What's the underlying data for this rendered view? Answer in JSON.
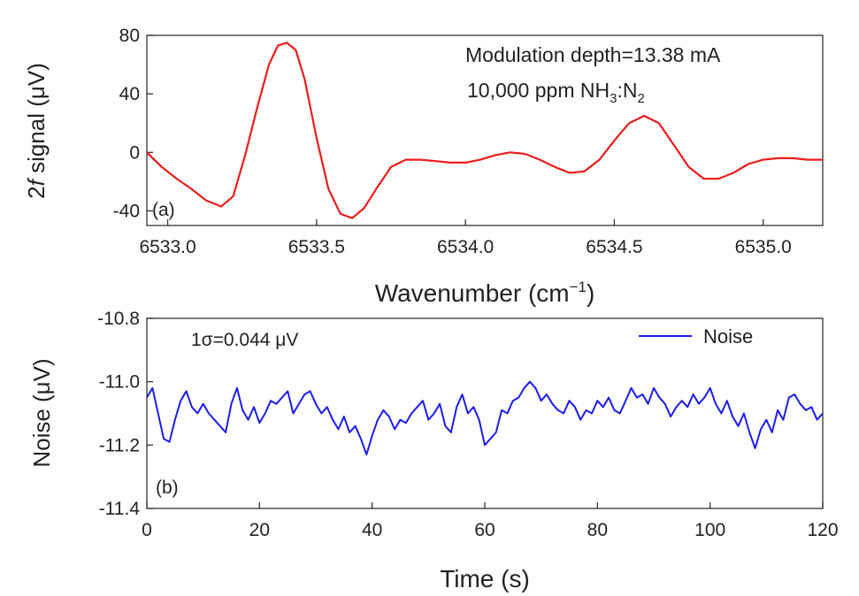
{
  "chart_data": [
    {
      "panel": "a",
      "type": "line",
      "panel_label": "(a)",
      "xlabel": "Wavenumber (cm",
      "xlabel_sup": "−1",
      "xlabel_close": ")",
      "ylabel_prefix": "2",
      "ylabel_italic": "f",
      "ylabel_rest": " signal (μV)",
      "xlim": [
        6532.93,
        6535.2
      ],
      "ylim": [
        -50,
        80
      ],
      "xticks": [
        6533.0,
        6533.5,
        6534.0,
        6534.5,
        6535.0
      ],
      "xtick_labels": [
        "6533.0",
        "6533.5",
        "6534.0",
        "6534.5",
        "6535.0"
      ],
      "yticks": [
        -40,
        0,
        40,
        80
      ],
      "ytick_labels": [
        "-40",
        "0",
        "40",
        "80"
      ],
      "annotations": {
        "line1": "Modulation depth=13.38 mA",
        "line2_a": "10,000 ppm NH",
        "line2_sub1": "3",
        "line2_b": ":N",
        "line2_sub2": "2"
      },
      "series": [
        {
          "name": "2f signal",
          "color": "#ee1c1c",
          "x": [
            6532.93,
            6532.98,
            6533.03,
            6533.08,
            6533.13,
            6533.18,
            6533.22,
            6533.26,
            6533.3,
            6533.34,
            6533.37,
            6533.4,
            6533.43,
            6533.46,
            6533.5,
            6533.54,
            6533.58,
            6533.62,
            6533.66,
            6533.7,
            6533.75,
            6533.8,
            6533.85,
            6533.9,
            6533.95,
            6534.0,
            6534.05,
            6534.1,
            6534.15,
            6534.2,
            6534.25,
            6534.3,
            6534.35,
            6534.4,
            6534.45,
            6534.5,
            6534.55,
            6534.6,
            6534.65,
            6534.7,
            6534.75,
            6534.8,
            6534.85,
            6534.9,
            6534.95,
            6535.0,
            6535.05,
            6535.1,
            6535.15,
            6535.2
          ],
          "y": [
            0,
            -10,
            -18,
            -25,
            -33,
            -37,
            -30,
            -2,
            30,
            60,
            73,
            75,
            70,
            50,
            10,
            -25,
            -42,
            -45,
            -38,
            -25,
            -10,
            -5,
            -5,
            -6,
            -7,
            -7,
            -5,
            -2,
            0,
            -1,
            -5,
            -10,
            -14,
            -13,
            -5,
            8,
            20,
            25,
            20,
            5,
            -10,
            -18,
            -18,
            -14,
            -8,
            -5,
            -4,
            -4,
            -5,
            -5
          ]
        }
      ]
    },
    {
      "panel": "b",
      "type": "line",
      "panel_label": "(b)",
      "xlabel": "Time (s)",
      "ylabel": "Noise (μV)",
      "xlim": [
        0,
        120
      ],
      "ylim": [
        -11.4,
        -10.8
      ],
      "xticks": [
        0,
        20,
        40,
        60,
        80,
        100,
        120
      ],
      "xtick_labels": [
        "0",
        "20",
        "40",
        "60",
        "80",
        "100",
        "120"
      ],
      "yticks": [
        -11.4,
        -11.2,
        -11.0,
        -10.8
      ],
      "ytick_labels": [
        "-11.4",
        "-11.2",
        "-11.0",
        "-10.8"
      ],
      "annotations": {
        "sigma": "1σ=0.044 μV"
      },
      "legend": {
        "label": "Noise",
        "placement": "top-right"
      },
      "series": [
        {
          "name": "Noise",
          "color": "#1c1cee",
          "x": [
            0,
            1,
            2,
            3,
            4,
            5,
            6,
            7,
            8,
            9,
            10,
            11,
            12,
            13,
            14,
            15,
            16,
            17,
            18,
            19,
            20,
            21,
            22,
            23,
            24,
            25,
            26,
            27,
            28,
            29,
            30,
            31,
            32,
            33,
            34,
            35,
            36,
            37,
            38,
            39,
            40,
            41,
            42,
            43,
            44,
            45,
            46,
            47,
            48,
            49,
            50,
            51,
            52,
            53,
            54,
            55,
            56,
            57,
            58,
            59,
            60,
            61,
            62,
            63,
            64,
            65,
            66,
            67,
            68,
            69,
            70,
            71,
            72,
            73,
            74,
            75,
            76,
            77,
            78,
            79,
            80,
            81,
            82,
            83,
            84,
            85,
            86,
            87,
            88,
            89,
            90,
            91,
            92,
            93,
            94,
            95,
            96,
            97,
            98,
            99,
            100,
            101,
            102,
            103,
            104,
            105,
            106,
            107,
            108,
            109,
            110,
            111,
            112,
            113,
            114,
            115,
            116,
            117,
            118,
            119,
            120
          ],
          "y": [
            -11.05,
            -11.02,
            -11.1,
            -11.18,
            -11.19,
            -11.12,
            -11.06,
            -11.03,
            -11.08,
            -11.1,
            -11.07,
            -11.1,
            -11.12,
            -11.14,
            -11.16,
            -11.07,
            -11.02,
            -11.09,
            -11.12,
            -11.08,
            -11.13,
            -11.1,
            -11.06,
            -11.07,
            -11.05,
            -11.03,
            -11.1,
            -11.07,
            -11.04,
            -11.03,
            -11.07,
            -11.1,
            -11.08,
            -11.12,
            -11.15,
            -11.11,
            -11.16,
            -11.14,
            -11.18,
            -11.23,
            -11.17,
            -11.12,
            -11.09,
            -11.11,
            -11.15,
            -11.12,
            -11.13,
            -11.1,
            -11.08,
            -11.06,
            -11.12,
            -11.1,
            -11.07,
            -11.14,
            -11.16,
            -11.08,
            -11.04,
            -11.1,
            -11.08,
            -11.12,
            -11.2,
            -11.18,
            -11.16,
            -11.09,
            -11.1,
            -11.06,
            -11.05,
            -11.02,
            -11.0,
            -11.02,
            -11.06,
            -11.04,
            -11.07,
            -11.09,
            -11.1,
            -11.06,
            -11.08,
            -11.12,
            -11.09,
            -11.1,
            -11.06,
            -11.08,
            -11.05,
            -11.09,
            -11.1,
            -11.06,
            -11.02,
            -11.05,
            -11.04,
            -11.07,
            -11.02,
            -11.05,
            -11.07,
            -11.11,
            -11.08,
            -11.06,
            -11.08,
            -11.04,
            -11.07,
            -11.05,
            -11.02,
            -11.07,
            -11.1,
            -11.06,
            -11.11,
            -11.14,
            -11.1,
            -11.16,
            -11.21,
            -11.15,
            -11.12,
            -11.16,
            -11.09,
            -11.12,
            -11.05,
            -11.04,
            -11.07,
            -11.09,
            -11.08,
            -11.12,
            -11.1
          ]
        }
      ]
    }
  ]
}
